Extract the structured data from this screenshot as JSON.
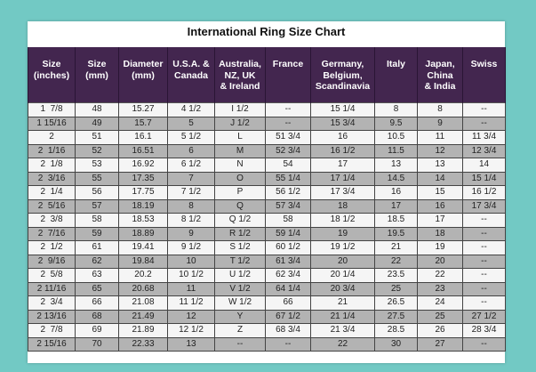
{
  "title": "International Ring Size Chart",
  "colors": {
    "background": "#72c9c4",
    "header": "#43264f",
    "row_alt": "#b3b3b3",
    "row": "#f5f5f5"
  },
  "headers": [
    "Size\n(inches)",
    "Size\n(mm)",
    "Diameter\n(mm)",
    "U.S.A. &\nCanada",
    "Australia,\nNZ, UK\n& Ireland",
    "France",
    "Germany,\nBelgium,\nScandinavia",
    "Italy",
    "Japan,\nChina\n& India",
    "Swiss"
  ],
  "rows": [
    [
      "1  7/8",
      "48",
      "15.27",
      "4 1/2",
      "I 1/2",
      "--",
      "15 1/4",
      "8",
      "8",
      "--"
    ],
    [
      "1 15/16",
      "49",
      "15.7",
      "5",
      "J 1/2",
      "--",
      "15 3/4",
      "9.5",
      "9",
      "--"
    ],
    [
      "2",
      "51",
      "16.1",
      "5 1/2",
      "L",
      "51 3/4",
      "16",
      "10.5",
      "11",
      "11 3/4"
    ],
    [
      "2  1/16",
      "52",
      "16.51",
      "6",
      "M",
      "52 3/4",
      "16 1/2",
      "11.5",
      "12",
      "12 3/4"
    ],
    [
      "2  1/8",
      "53",
      "16.92",
      "6 1/2",
      "N",
      "54",
      "17",
      "13",
      "13",
      "14"
    ],
    [
      "2  3/16",
      "55",
      "17.35",
      "7",
      "O",
      "55 1/4",
      "17 1/4",
      "14.5",
      "14",
      "15 1/4"
    ],
    [
      "2  1/4",
      "56",
      "17.75",
      "7 1/2",
      "P",
      "56 1/2",
      "17 3/4",
      "16",
      "15",
      "16 1/2"
    ],
    [
      "2  5/16",
      "57",
      "18.19",
      "8",
      "Q",
      "57 3/4",
      "18",
      "17",
      "16",
      "17 3/4"
    ],
    [
      "2  3/8",
      "58",
      "18.53",
      "8 1/2",
      "Q 1/2",
      "58",
      "18 1/2",
      "18.5",
      "17",
      "--"
    ],
    [
      "2  7/16",
      "59",
      "18.89",
      "9",
      "R 1/2",
      "59 1/4",
      "19",
      "19.5",
      "18",
      "--"
    ],
    [
      "2  1/2",
      "61",
      "19.41",
      "9 1/2",
      "S 1/2",
      "60 1/2",
      "19 1/2",
      "21",
      "19",
      "--"
    ],
    [
      "2  9/16",
      "62",
      "19.84",
      "10",
      "T 1/2",
      "61 3/4",
      "20",
      "22",
      "20",
      "--"
    ],
    [
      "2  5/8",
      "63",
      "20.2",
      "10 1/2",
      "U 1/2",
      "62 3/4",
      "20 1/4",
      "23.5",
      "22",
      "--"
    ],
    [
      "2 11/16",
      "65",
      "20.68",
      "11",
      "V 1/2",
      "64 1/4",
      "20 3/4",
      "25",
      "23",
      "--"
    ],
    [
      "2  3/4",
      "66",
      "21.08",
      "11 1/2",
      "W 1/2",
      "66",
      "21",
      "26.5",
      "24",
      "--"
    ],
    [
      "2 13/16",
      "68",
      "21.49",
      "12",
      "Y",
      "67 1/2",
      "21 1/4",
      "27.5",
      "25",
      "27 1/2"
    ],
    [
      "2  7/8",
      "69",
      "21.89",
      "12 1/2",
      "Z",
      "68 3/4",
      "21 3/4",
      "28.5",
      "26",
      "28 3/4"
    ],
    [
      "2 15/16",
      "70",
      "22.33",
      "13",
      "--",
      "--",
      "22",
      "30",
      "27",
      "--"
    ]
  ]
}
